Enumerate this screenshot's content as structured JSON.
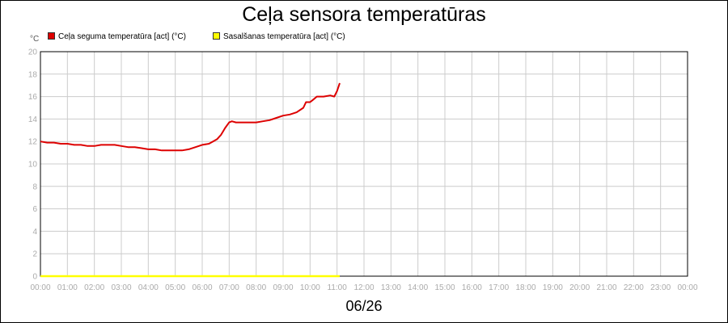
{
  "chart_data": {
    "type": "line",
    "title": "Ceļa sensora temperatūras",
    "date_label": "06/26",
    "y_unit": "°C",
    "ylim": [
      0,
      20
    ],
    "y_ticks": [
      "0",
      "2",
      "4",
      "6",
      "8",
      "10",
      "12",
      "14",
      "16",
      "18",
      "20"
    ],
    "x_ticks": [
      "00:00",
      "01:00",
      "02:00",
      "03:00",
      "04:00",
      "05:00",
      "06:00",
      "07:00",
      "08:00",
      "09:00",
      "10:00",
      "11:00",
      "12:00",
      "13:00",
      "14:00",
      "15:00",
      "16:00",
      "17:00",
      "18:00",
      "19:00",
      "20:00",
      "21:00",
      "22:00",
      "23:00",
      "00:00"
    ],
    "xlim_hours": [
      0,
      24
    ],
    "grid": true,
    "legend_position": "top-left",
    "series": [
      {
        "name": "Ceļa seguma temperatūra [act] (°C)",
        "color": "#dd0000",
        "x": [
          0,
          0.25,
          0.5,
          0.75,
          1,
          1.25,
          1.5,
          1.75,
          2,
          2.25,
          2.5,
          2.75,
          3,
          3.25,
          3.5,
          3.75,
          4,
          4.25,
          4.5,
          4.75,
          5,
          5.25,
          5.5,
          5.75,
          6,
          6.25,
          6.4,
          6.55,
          6.7,
          6.85,
          7,
          7.1,
          7.25,
          7.5,
          7.75,
          8,
          8.25,
          8.5,
          8.75,
          9,
          9.25,
          9.5,
          9.75,
          9.85,
          10,
          10.1,
          10.25,
          10.5,
          10.75,
          10.9,
          11,
          11.1
        ],
        "values": [
          12.0,
          11.9,
          11.9,
          11.8,
          11.8,
          11.7,
          11.7,
          11.6,
          11.6,
          11.7,
          11.7,
          11.7,
          11.6,
          11.5,
          11.5,
          11.4,
          11.3,
          11.3,
          11.2,
          11.2,
          11.2,
          11.2,
          11.3,
          11.5,
          11.7,
          11.8,
          12.0,
          12.2,
          12.6,
          13.2,
          13.7,
          13.8,
          13.7,
          13.7,
          13.7,
          13.7,
          13.8,
          13.9,
          14.1,
          14.3,
          14.4,
          14.6,
          15.0,
          15.5,
          15.5,
          15.7,
          16.0,
          16.0,
          16.1,
          16.0,
          16.5,
          17.2
        ]
      },
      {
        "name": "Sasalšanas temperatūra [act] (°C)",
        "color": "#ffff00",
        "x": [
          0,
          11.1
        ],
        "values": [
          0,
          0
        ]
      }
    ]
  }
}
